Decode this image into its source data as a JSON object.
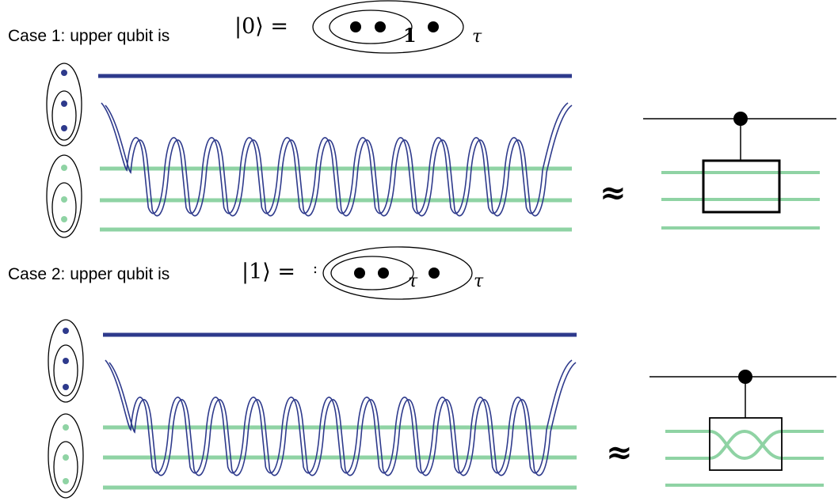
{
  "case1": {
    "label": "Case 1: upper qubit is",
    "state": "|0⟩ =",
    "inner_label": "1",
    "outer_label": "τ"
  },
  "case2": {
    "label": "Case 2: upper qubit is",
    "state": "|1⟩ =",
    "inner_label": "τ",
    "outer_label": "τ"
  },
  "approx_symbol": "≈",
  "colors": {
    "qubit_line": "#2e3a8c",
    "lower_lines": "#8fd3a4",
    "weave": "#2e3a8c",
    "circuit": "#000000",
    "dot_blue": "#2e3a8c",
    "dot_green": "#8fd3a4"
  }
}
